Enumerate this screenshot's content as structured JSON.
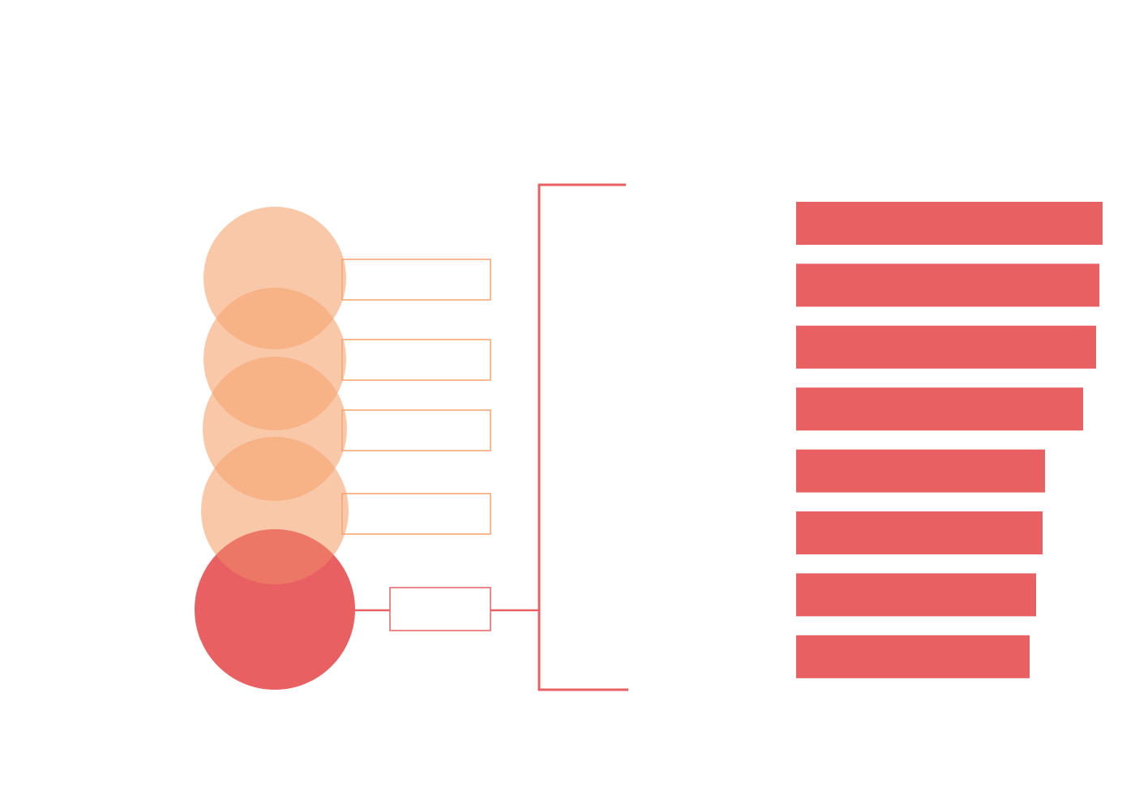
{
  "bars": {
    "color": "#e96063",
    "values": [
      378,
      374,
      370,
      354,
      307,
      304,
      296,
      288
    ]
  }
}
